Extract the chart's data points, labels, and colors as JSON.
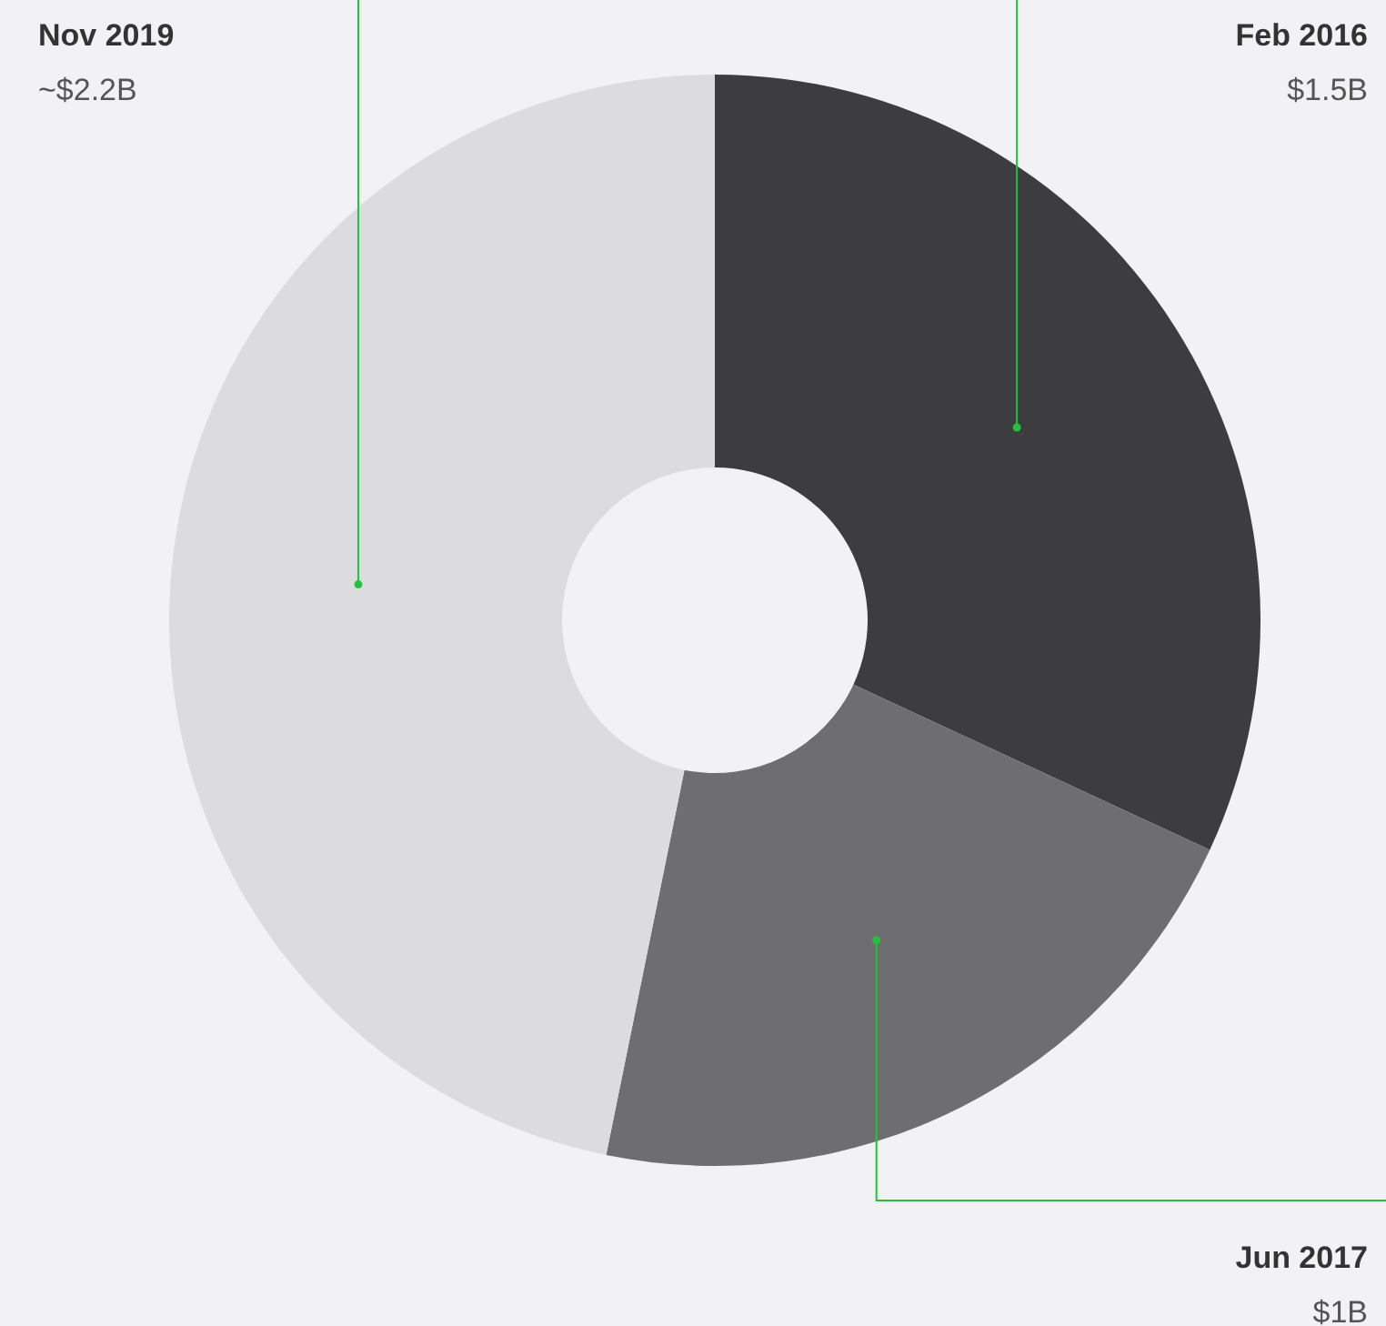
{
  "chart_data": {
    "type": "donut",
    "categories": [
      "Feb 2016",
      "Jun 2017",
      "Nov 2019"
    ],
    "values": [
      1.5,
      1,
      2.2
    ],
    "value_labels": [
      "$1.5B",
      "$1B",
      "~$2.2B"
    ],
    "colors": [
      "#3d3d3f",
      "#6e6e70",
      "#dcdcde"
    ]
  }
}
